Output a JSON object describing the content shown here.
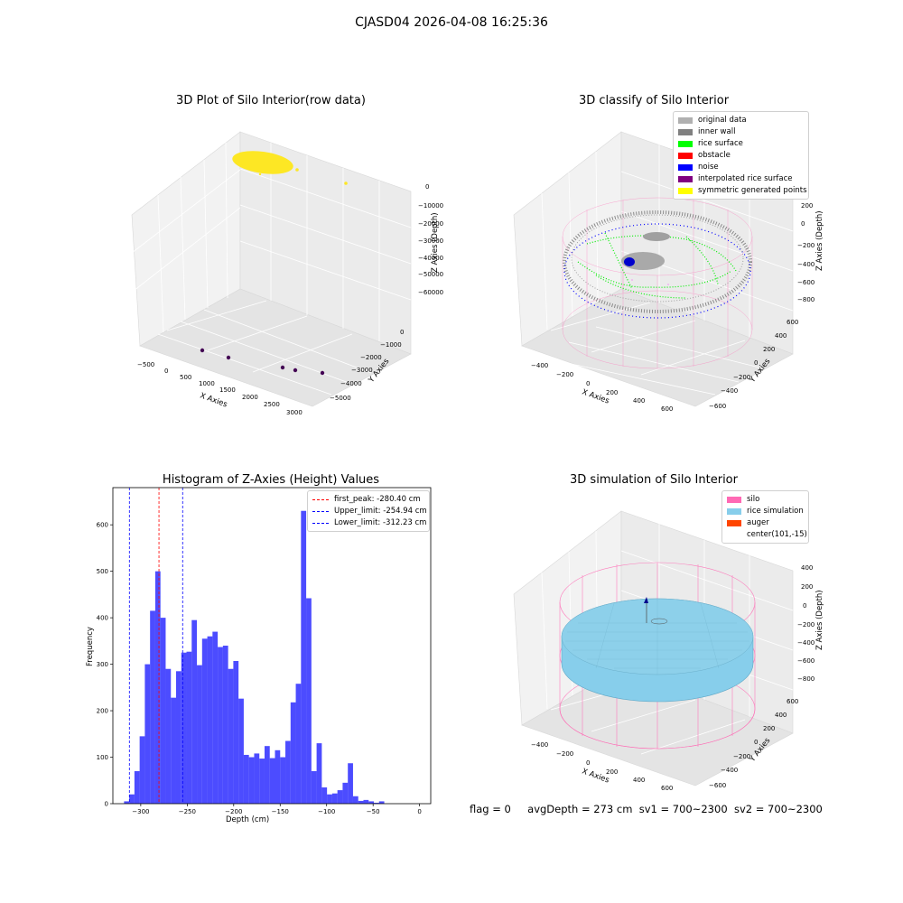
{
  "suptitle": "CJASD04 2026-04-08 16:25:36",
  "panel1": {
    "title": "3D Plot of Silo Interior(row data)",
    "xlabel": "X Axies",
    "ylabel": "Y Axies",
    "zlabel": "Z Axies (Depth)",
    "xticks": [
      "−500",
      "0",
      "500",
      "1000",
      "1500",
      "2000",
      "2500",
      "3000"
    ],
    "yticks": [
      "0",
      "−1000",
      "−2000",
      "−3000",
      "−4000",
      "−5000"
    ],
    "zticks": [
      "0",
      "−10000",
      "−20000",
      "−30000",
      "−40000",
      "−50000",
      "−60000"
    ]
  },
  "panel2": {
    "title": "3D classify of Silo Interior",
    "xlabel": "X Axies",
    "ylabel": "Y Axies",
    "zlabel": "Z Axies (Depth)",
    "xticks": [
      "−400",
      "−200",
      "0",
      "200",
      "400",
      "600"
    ],
    "yticks": [
      "600",
      "400",
      "200",
      "0",
      "−200",
      "−400",
      "−600"
    ],
    "zticks": [
      "200",
      "0",
      "−200",
      "−400",
      "−600",
      "−800"
    ],
    "legend": [
      {
        "label": "original data",
        "color": "#b0b0b0"
      },
      {
        "label": "inner wall",
        "color": "#808080"
      },
      {
        "label": "rice surface",
        "color": "#00ff00"
      },
      {
        "label": "obstacle",
        "color": "#ff0000"
      },
      {
        "label": "noise",
        "color": "#0000ff"
      },
      {
        "label": "interpolated rice surface",
        "color": "#800080"
      },
      {
        "label": "symmetric generated points",
        "color": "#ffff00"
      }
    ]
  },
  "panel3": {
    "title": "Histogram of Z-Axies (Height) Values",
    "xlabel": "Depth (cm)",
    "ylabel": "Frequency",
    "legend": [
      {
        "label": "first_peak: -280.40 cm",
        "color": "#ff0000"
      },
      {
        "label": "Upper_limit: -254.94 cm",
        "color": "#0000ff"
      },
      {
        "label": "Lower_limit: -312.23 cm",
        "color": "#0000ff"
      }
    ]
  },
  "panel4": {
    "title": "3D simulation of Silo Interior",
    "xlabel": "X Axies",
    "ylabel": "Y Axies",
    "zlabel": "Z Axies (Depth)",
    "xticks": [
      "−400",
      "−200",
      "0",
      "200",
      "400",
      "600"
    ],
    "yticks": [
      "600",
      "400",
      "200",
      "0",
      "−200",
      "−400",
      "−600"
    ],
    "zticks": [
      "400",
      "200",
      "0",
      "−200",
      "−400",
      "−600",
      "−800"
    ],
    "legend": [
      {
        "label": "silo",
        "color": "#ff69b4",
        "swatch": true
      },
      {
        "label": "rice simulation",
        "color": "#87ceeb",
        "swatch": true
      },
      {
        "label": "auger",
        "color": "#ff4500",
        "swatch": true
      },
      {
        "label": "center(101,-15)",
        "color": "",
        "swatch": false
      }
    ]
  },
  "footer": {
    "flag": "flag = 0",
    "avg": "avgDepth = 273 cm",
    "sv1": "sv1 = 700~2300",
    "sv2": "sv2 = 700~2300"
  },
  "chart_data": [
    {
      "type": "scatter",
      "title": "3D Plot of Silo Interior(row data)",
      "xlabel": "X Axies",
      "ylabel": "Y Axies",
      "zlabel": "Z Axies (Depth)",
      "xlim": [
        -700,
        3300
      ],
      "ylim": [
        -5500,
        500
      ],
      "zlim": [
        -65000,
        2000
      ],
      "note": "3D scatter; cluster of yellow points near origin and a few outliers"
    },
    {
      "type": "scatter",
      "title": "3D classify of Silo Interior",
      "xlabel": "X Axies",
      "ylabel": "Y Axies",
      "zlabel": "Z Axies (Depth)",
      "xlim": [
        -500,
        700
      ],
      "ylim": [
        -650,
        650
      ],
      "zlim": [
        -900,
        300
      ],
      "series": [
        {
          "name": "original data"
        },
        {
          "name": "inner wall"
        },
        {
          "name": "rice surface"
        },
        {
          "name": "obstacle"
        },
        {
          "name": "noise"
        },
        {
          "name": "interpolated rice surface"
        },
        {
          "name": "symmetric generated points"
        }
      ]
    },
    {
      "type": "bar",
      "title": "Histogram of Z-Axies (Height) Values",
      "xlabel": "Depth (cm)",
      "ylabel": "Frequency",
      "xlim": [
        -330,
        12
      ],
      "ylim": [
        0,
        680
      ],
      "xticks": [
        -300,
        -250,
        -200,
        -150,
        -100,
        -50,
        0
      ],
      "yticks": [
        0,
        100,
        200,
        300,
        400,
        500,
        600
      ],
      "bin_width": 5.6,
      "bin_start": -318,
      "values": [
        5,
        20,
        70,
        145,
        300,
        415,
        500,
        400,
        290,
        228,
        285,
        325,
        327,
        395,
        298,
        355,
        360,
        370,
        337,
        340,
        290,
        307,
        226,
        105,
        100,
        108,
        97,
        124,
        98,
        115,
        100,
        135,
        218,
        258,
        630,
        442,
        70,
        130,
        35,
        20,
        22,
        29,
        45,
        87,
        16,
        6,
        8,
        5,
        2,
        5
      ],
      "vlines": [
        {
          "name": "first_peak: -280.40 cm",
          "x": -280.4,
          "color": "#ff0000"
        },
        {
          "name": "Upper_limit: -254.94 cm",
          "x": -254.94,
          "color": "#0000ff"
        },
        {
          "name": "Lower_limit: -312.23 cm",
          "x": -312.23,
          "color": "#0000ff"
        }
      ]
    },
    {
      "type": "scatter",
      "title": "3D simulation of Silo Interior",
      "xlabel": "X Axies",
      "ylabel": "Y Axies",
      "zlabel": "Z Axies (Depth)",
      "xlim": [
        -500,
        700
      ],
      "ylim": [
        -650,
        650
      ],
      "zlim": [
        -900,
        450
      ],
      "series": [
        {
          "name": "silo"
        },
        {
          "name": "rice simulation"
        },
        {
          "name": "auger"
        },
        {
          "name": "center(101,-15)"
        }
      ]
    }
  ]
}
